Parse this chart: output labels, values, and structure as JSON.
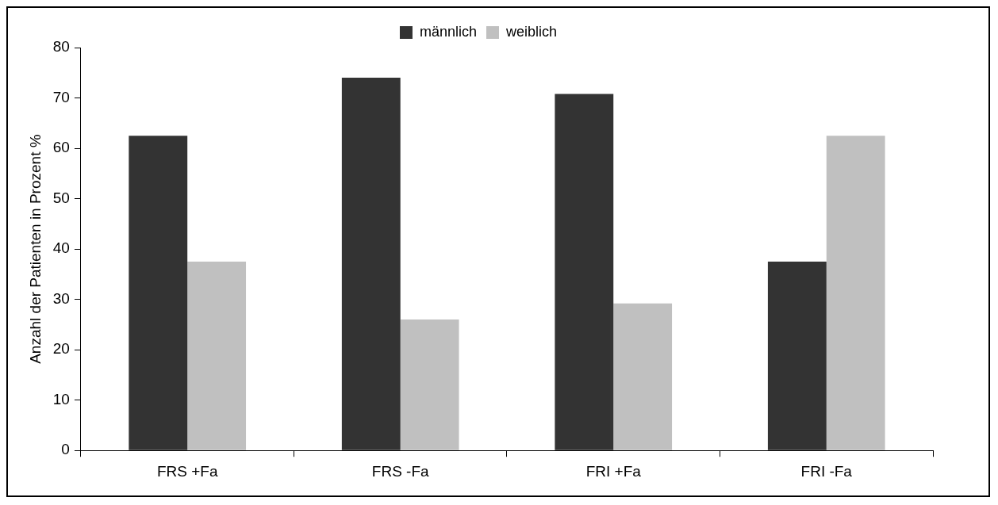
{
  "chart_data": {
    "type": "bar",
    "ylabel": "Anzahl der Patienten in Prozent %",
    "categories": [
      "FRS +Fa",
      "FRS -Fa",
      "FRI +Fa",
      "FRI -Fa"
    ],
    "series": [
      {
        "name": "männlich",
        "color": "#333333",
        "values": [
          62.5,
          74,
          70.8,
          37.5
        ]
      },
      {
        "name": "weiblich",
        "color": "#c0c0c0",
        "values": [
          37.5,
          26,
          29.2,
          62.5
        ]
      }
    ],
    "ylim": [
      0,
      80
    ],
    "yticks": [
      0,
      10,
      20,
      30,
      40,
      50,
      60,
      70,
      80
    ],
    "grid": false,
    "legend": "top"
  }
}
